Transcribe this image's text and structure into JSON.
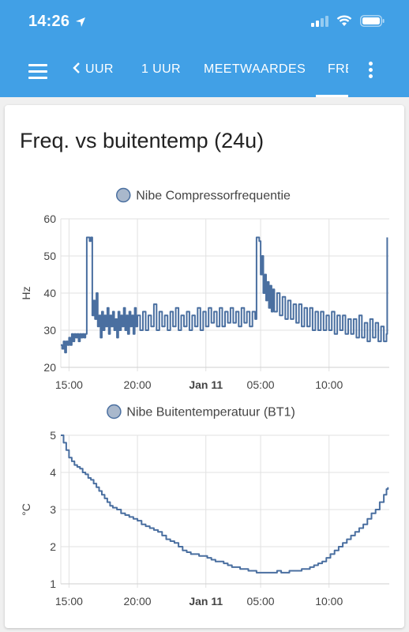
{
  "status": {
    "time": "14:26"
  },
  "toolbar": {
    "tabs": [
      "< UUR",
      "1 UUR",
      "MEETWAARDES",
      "FRE"
    ],
    "tab_back_label": "UUR",
    "active_tab": "FRE"
  },
  "card": {
    "title": "Freq. vs buitentemp (24u)"
  },
  "colors": {
    "appbar": "#41a0e6",
    "series": "#4a6fa0",
    "grid": "#e2e2e2"
  },
  "chart_data": [
    {
      "type": "line",
      "legend": "Nibe Compressorfrequentie",
      "ylabel": "Hz",
      "ylim": [
        20,
        60
      ],
      "yticks": [
        "60",
        "50",
        "40",
        "30",
        "20"
      ],
      "xticks": [
        "15:00",
        "20:00",
        "Jan 11",
        "05:00",
        "10:00"
      ],
      "xrange_hours": [
        14.4,
        38.4
      ],
      "series": [
        {
          "values": [
            [
              14.4,
              26
            ],
            [
              14.5,
              25
            ],
            [
              14.6,
              27
            ],
            [
              14.7,
              24
            ],
            [
              14.8,
              27
            ],
            [
              14.9,
              26
            ],
            [
              15.0,
              28
            ],
            [
              15.1,
              26
            ],
            [
              15.2,
              29
            ],
            [
              15.3,
              27
            ],
            [
              15.4,
              29
            ],
            [
              15.5,
              28
            ],
            [
              15.6,
              29
            ],
            [
              15.7,
              27
            ],
            [
              15.8,
              29
            ],
            [
              15.9,
              28
            ],
            [
              16.0,
              29
            ],
            [
              16.1,
              28
            ],
            [
              16.2,
              29
            ],
            [
              16.3,
              55
            ],
            [
              16.4,
              55
            ],
            [
              16.5,
              54
            ],
            [
              16.6,
              55
            ],
            [
              16.7,
              34
            ],
            [
              16.8,
              38
            ],
            [
              16.9,
              33
            ],
            [
              17.0,
              40
            ],
            [
              17.1,
              31
            ],
            [
              17.2,
              34
            ],
            [
              17.3,
              28
            ],
            [
              17.4,
              35
            ],
            [
              17.5,
              30
            ],
            [
              17.6,
              34
            ],
            [
              17.7,
              31
            ],
            [
              17.8,
              36
            ],
            [
              17.9,
              29
            ],
            [
              18.0,
              34
            ],
            [
              18.1,
              31
            ],
            [
              18.2,
              35
            ],
            [
              18.3,
              30
            ],
            [
              18.4,
              33
            ],
            [
              18.5,
              28
            ],
            [
              18.6,
              35
            ],
            [
              18.7,
              30
            ],
            [
              18.8,
              34
            ],
            [
              18.9,
              31
            ],
            [
              19.0,
              36
            ],
            [
              19.1,
              30
            ],
            [
              19.2,
              34
            ],
            [
              19.3,
              29
            ],
            [
              19.4,
              35
            ],
            [
              19.5,
              31
            ],
            [
              19.6,
              34
            ],
            [
              19.7,
              29
            ],
            [
              19.8,
              36
            ],
            [
              19.9,
              31
            ],
            [
              20.0,
              34
            ],
            [
              20.2,
              30
            ],
            [
              20.4,
              35
            ],
            [
              20.6,
              30
            ],
            [
              20.8,
              34
            ],
            [
              21.0,
              31
            ],
            [
              21.2,
              37
            ],
            [
              21.4,
              30
            ],
            [
              21.6,
              35
            ],
            [
              21.8,
              31
            ],
            [
              22.0,
              34
            ],
            [
              22.2,
              30
            ],
            [
              22.4,
              35
            ],
            [
              22.6,
              31
            ],
            [
              22.8,
              36
            ],
            [
              23.0,
              30
            ],
            [
              23.2,
              34
            ],
            [
              23.4,
              31
            ],
            [
              23.6,
              35
            ],
            [
              23.8,
              30
            ],
            [
              24.0,
              34
            ],
            [
              24.2,
              31
            ],
            [
              24.4,
              36
            ],
            [
              24.6,
              30
            ],
            [
              24.8,
              35
            ],
            [
              25.0,
              31
            ],
            [
              25.2,
              36
            ],
            [
              25.4,
              32
            ],
            [
              25.6,
              35
            ],
            [
              25.8,
              31
            ],
            [
              26.0,
              36
            ],
            [
              26.2,
              31
            ],
            [
              26.4,
              35
            ],
            [
              26.6,
              32
            ],
            [
              26.8,
              36
            ],
            [
              27.0,
              32
            ],
            [
              27.2,
              35
            ],
            [
              27.4,
              31
            ],
            [
              27.6,
              36
            ],
            [
              27.8,
              32
            ],
            [
              28.0,
              35
            ],
            [
              28.2,
              31
            ],
            [
              28.4,
              35
            ],
            [
              28.6,
              33
            ],
            [
              28.7,
              55
            ],
            [
              28.8,
              55
            ],
            [
              28.9,
              54
            ],
            [
              29.0,
              45
            ],
            [
              29.1,
              50
            ],
            [
              29.2,
              40
            ],
            [
              29.3,
              45
            ],
            [
              29.4,
              38
            ],
            [
              29.5,
              43
            ],
            [
              29.6,
              36
            ],
            [
              29.7,
              42
            ],
            [
              29.8,
              35
            ],
            [
              29.9,
              41
            ],
            [
              30.0,
              35
            ],
            [
              30.2,
              40
            ],
            [
              30.4,
              34
            ],
            [
              30.6,
              39
            ],
            [
              30.8,
              33
            ],
            [
              31.0,
              38
            ],
            [
              31.2,
              33
            ],
            [
              31.4,
              37
            ],
            [
              31.6,
              32
            ],
            [
              31.8,
              37
            ],
            [
              32.0,
              31
            ],
            [
              32.2,
              36
            ],
            [
              32.4,
              31
            ],
            [
              32.6,
              36
            ],
            [
              32.8,
              30
            ],
            [
              33.0,
              35
            ],
            [
              33.2,
              30
            ],
            [
              33.4,
              35
            ],
            [
              33.6,
              30
            ],
            [
              33.8,
              34
            ],
            [
              34.0,
              30
            ],
            [
              34.2,
              35
            ],
            [
              34.4,
              29
            ],
            [
              34.6,
              34
            ],
            [
              34.8,
              30
            ],
            [
              35.0,
              34
            ],
            [
              35.2,
              29
            ],
            [
              35.4,
              33
            ],
            [
              35.6,
              29
            ],
            [
              35.8,
              33
            ],
            [
              36.0,
              28
            ],
            [
              36.2,
              34
            ],
            [
              36.4,
              28
            ],
            [
              36.6,
              32
            ],
            [
              36.8,
              27
            ],
            [
              37.0,
              33
            ],
            [
              37.2,
              28
            ],
            [
              37.4,
              32
            ],
            [
              37.6,
              27
            ],
            [
              37.8,
              31
            ],
            [
              38.0,
              27
            ],
            [
              38.2,
              29
            ],
            [
              38.25,
              55
            ]
          ]
        }
      ]
    },
    {
      "type": "line",
      "legend": "Nibe Buitentemperatuur (BT1)",
      "ylabel": "°C",
      "ylim": [
        1,
        5
      ],
      "yticks": [
        "5",
        "4",
        "3",
        "2",
        "1"
      ],
      "xticks": [
        "15:00",
        "20:00",
        "Jan 11",
        "05:00",
        "10:00"
      ],
      "xrange_hours": [
        14.4,
        38.4
      ],
      "series": [
        {
          "values": [
            [
              14.4,
              5.0
            ],
            [
              14.6,
              4.8
            ],
            [
              14.8,
              4.6
            ],
            [
              15.0,
              4.4
            ],
            [
              15.2,
              4.3
            ],
            [
              15.4,
              4.2
            ],
            [
              15.6,
              4.15
            ],
            [
              15.8,
              4.1
            ],
            [
              16.0,
              4.0
            ],
            [
              16.2,
              3.95
            ],
            [
              16.4,
              3.85
            ],
            [
              16.6,
              3.8
            ],
            [
              16.8,
              3.7
            ],
            [
              17.0,
              3.6
            ],
            [
              17.2,
              3.5
            ],
            [
              17.4,
              3.4
            ],
            [
              17.6,
              3.3
            ],
            [
              17.8,
              3.2
            ],
            [
              18.0,
              3.1
            ],
            [
              18.2,
              3.05
            ],
            [
              18.5,
              3.0
            ],
            [
              18.8,
              2.9
            ],
            [
              19.1,
              2.85
            ],
            [
              19.4,
              2.8
            ],
            [
              19.7,
              2.75
            ],
            [
              20.0,
              2.7
            ],
            [
              20.3,
              2.6
            ],
            [
              20.6,
              2.55
            ],
            [
              20.9,
              2.5
            ],
            [
              21.2,
              2.45
            ],
            [
              21.5,
              2.4
            ],
            [
              21.8,
              2.3
            ],
            [
              22.1,
              2.2
            ],
            [
              22.4,
              2.15
            ],
            [
              22.7,
              2.1
            ],
            [
              23.0,
              2.0
            ],
            [
              23.3,
              1.9
            ],
            [
              23.6,
              1.85
            ],
            [
              23.9,
              1.8
            ],
            [
              24.2,
              1.8
            ],
            [
              24.5,
              1.75
            ],
            [
              24.8,
              1.75
            ],
            [
              25.1,
              1.7
            ],
            [
              25.4,
              1.65
            ],
            [
              25.7,
              1.6
            ],
            [
              26.0,
              1.6
            ],
            [
              26.3,
              1.55
            ],
            [
              26.6,
              1.5
            ],
            [
              26.9,
              1.45
            ],
            [
              27.2,
              1.45
            ],
            [
              27.5,
              1.4
            ],
            [
              27.8,
              1.4
            ],
            [
              28.1,
              1.35
            ],
            [
              28.4,
              1.35
            ],
            [
              28.7,
              1.3
            ],
            [
              29.0,
              1.3
            ],
            [
              29.3,
              1.3
            ],
            [
              29.6,
              1.3
            ],
            [
              29.9,
              1.3
            ],
            [
              30.2,
              1.35
            ],
            [
              30.5,
              1.3
            ],
            [
              30.8,
              1.3
            ],
            [
              31.1,
              1.35
            ],
            [
              31.4,
              1.35
            ],
            [
              31.7,
              1.35
            ],
            [
              32.0,
              1.4
            ],
            [
              32.3,
              1.4
            ],
            [
              32.6,
              1.45
            ],
            [
              32.9,
              1.5
            ],
            [
              33.2,
              1.55
            ],
            [
              33.5,
              1.6
            ],
            [
              33.8,
              1.7
            ],
            [
              34.1,
              1.8
            ],
            [
              34.4,
              1.9
            ],
            [
              34.7,
              2.0
            ],
            [
              35.0,
              2.1
            ],
            [
              35.3,
              2.2
            ],
            [
              35.6,
              2.3
            ],
            [
              35.9,
              2.4
            ],
            [
              36.2,
              2.5
            ],
            [
              36.5,
              2.6
            ],
            [
              36.8,
              2.75
            ],
            [
              37.1,
              2.9
            ],
            [
              37.4,
              3.0
            ],
            [
              37.7,
              3.2
            ],
            [
              38.0,
              3.4
            ],
            [
              38.2,
              3.55
            ],
            [
              38.3,
              3.6
            ]
          ]
        }
      ]
    }
  ]
}
